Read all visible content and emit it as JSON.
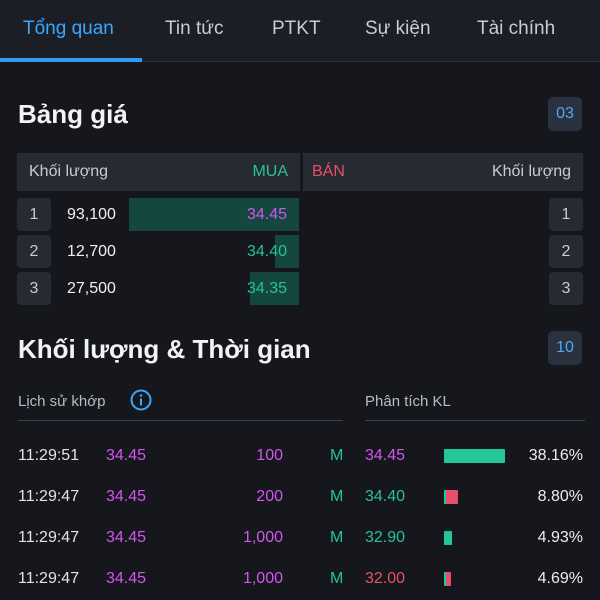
{
  "tabs": [
    {
      "label": "Tổng quan",
      "active": true
    },
    {
      "label": "Tin tức"
    },
    {
      "label": "PTKT"
    },
    {
      "label": "Sự kiện"
    },
    {
      "label": "Tài chính"
    }
  ],
  "price_board": {
    "title": "Bảng giá",
    "count": "03",
    "header": {
      "volume_left": "Khối lượng",
      "buy": "MUA",
      "sell": "BÁN",
      "volume_right": "Khối lượng"
    },
    "rows": [
      {
        "index": "1",
        "volume": "93,100",
        "price": "34.45",
        "price_color": "#d455f0",
        "fill": 1.0,
        "sell_index": "1"
      },
      {
        "index": "2",
        "volume": "12,700",
        "price": "34.40",
        "price_color": "#27c29a",
        "fill": 0.14,
        "sell_index": "2"
      },
      {
        "index": "3",
        "volume": "27,500",
        "price": "34.35",
        "price_color": "#27c29a",
        "fill": 0.29,
        "sell_index": "3"
      }
    ]
  },
  "volume_time": {
    "title": "Khối lượng & Thời gian",
    "count": "10",
    "history_label": "Lịch sử khớp",
    "analysis_label": "Phân tích KL",
    "trades": [
      {
        "time": "11:29:51",
        "price": "34.45",
        "volume": "100",
        "side": "M"
      },
      {
        "time": "11:29:47",
        "price": "34.45",
        "volume": "200",
        "side": "M"
      },
      {
        "time": "11:29:47",
        "price": "34.45",
        "volume": "1,000",
        "side": "M"
      },
      {
        "time": "11:29:47",
        "price": "34.45",
        "volume": "1,000",
        "side": "M"
      }
    ],
    "analysis": [
      {
        "price": "34.45",
        "price_color": "#d455f0",
        "percent": "38.16%",
        "share": 1.0,
        "green_ratio": 1.0
      },
      {
        "price": "34.40",
        "price_color": "#27c29a",
        "percent": "8.80%",
        "share": 0.23,
        "green_ratio": 0.15
      },
      {
        "price": "32.90",
        "price_color": "#27c29a",
        "percent": "4.93%",
        "share": 0.13,
        "green_ratio": 1.0
      },
      {
        "price": "32.00",
        "price_color": "#e6506a",
        "percent": "4.69%",
        "share": 0.12,
        "green_ratio": 0.35
      }
    ]
  },
  "colors": {
    "accent": "#2f9bf5",
    "buy": "#27c29a",
    "sell": "#e6506a",
    "ceiling": "#d455f0"
  }
}
